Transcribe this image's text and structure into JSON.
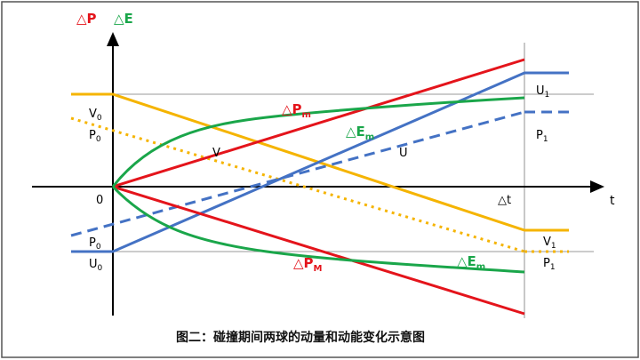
{
  "axes": {
    "y_title_p": "△P",
    "y_title_e": "△E",
    "x_title": "t",
    "origin": "0",
    "delta_t": "△t"
  },
  "labels": {
    "V0": {
      "main": "V",
      "sub": "0"
    },
    "P0_upper": {
      "main": "P",
      "sub": "0"
    },
    "P0_lower": {
      "main": "P",
      "sub": "0"
    },
    "U0": {
      "main": "U",
      "sub": "0"
    },
    "U1": {
      "main": "U",
      "sub": "1"
    },
    "P1_upper": {
      "main": "P",
      "sub": "1"
    },
    "V1": {
      "main": "V",
      "sub": "1"
    },
    "P1_lower": {
      "main": "P",
      "sub": "1"
    },
    "V_curve": "V",
    "U_curve": "U",
    "dPm": {
      "main": "△P",
      "sub": "m"
    },
    "dEm_upper": {
      "main": "△E",
      "sub": "m"
    },
    "dPM": {
      "main": "△P",
      "sub": "M"
    },
    "dEm_lower": {
      "main": "△E",
      "sub": "m"
    }
  },
  "caption": "图二：碰撞期间两球的动量和动能变化示意图",
  "colors": {
    "red": "#e4141b",
    "green": "#1aa64a",
    "blue": "#4472c4",
    "orange": "#f5b400",
    "axis": "#000000",
    "border": "#555555"
  }
}
